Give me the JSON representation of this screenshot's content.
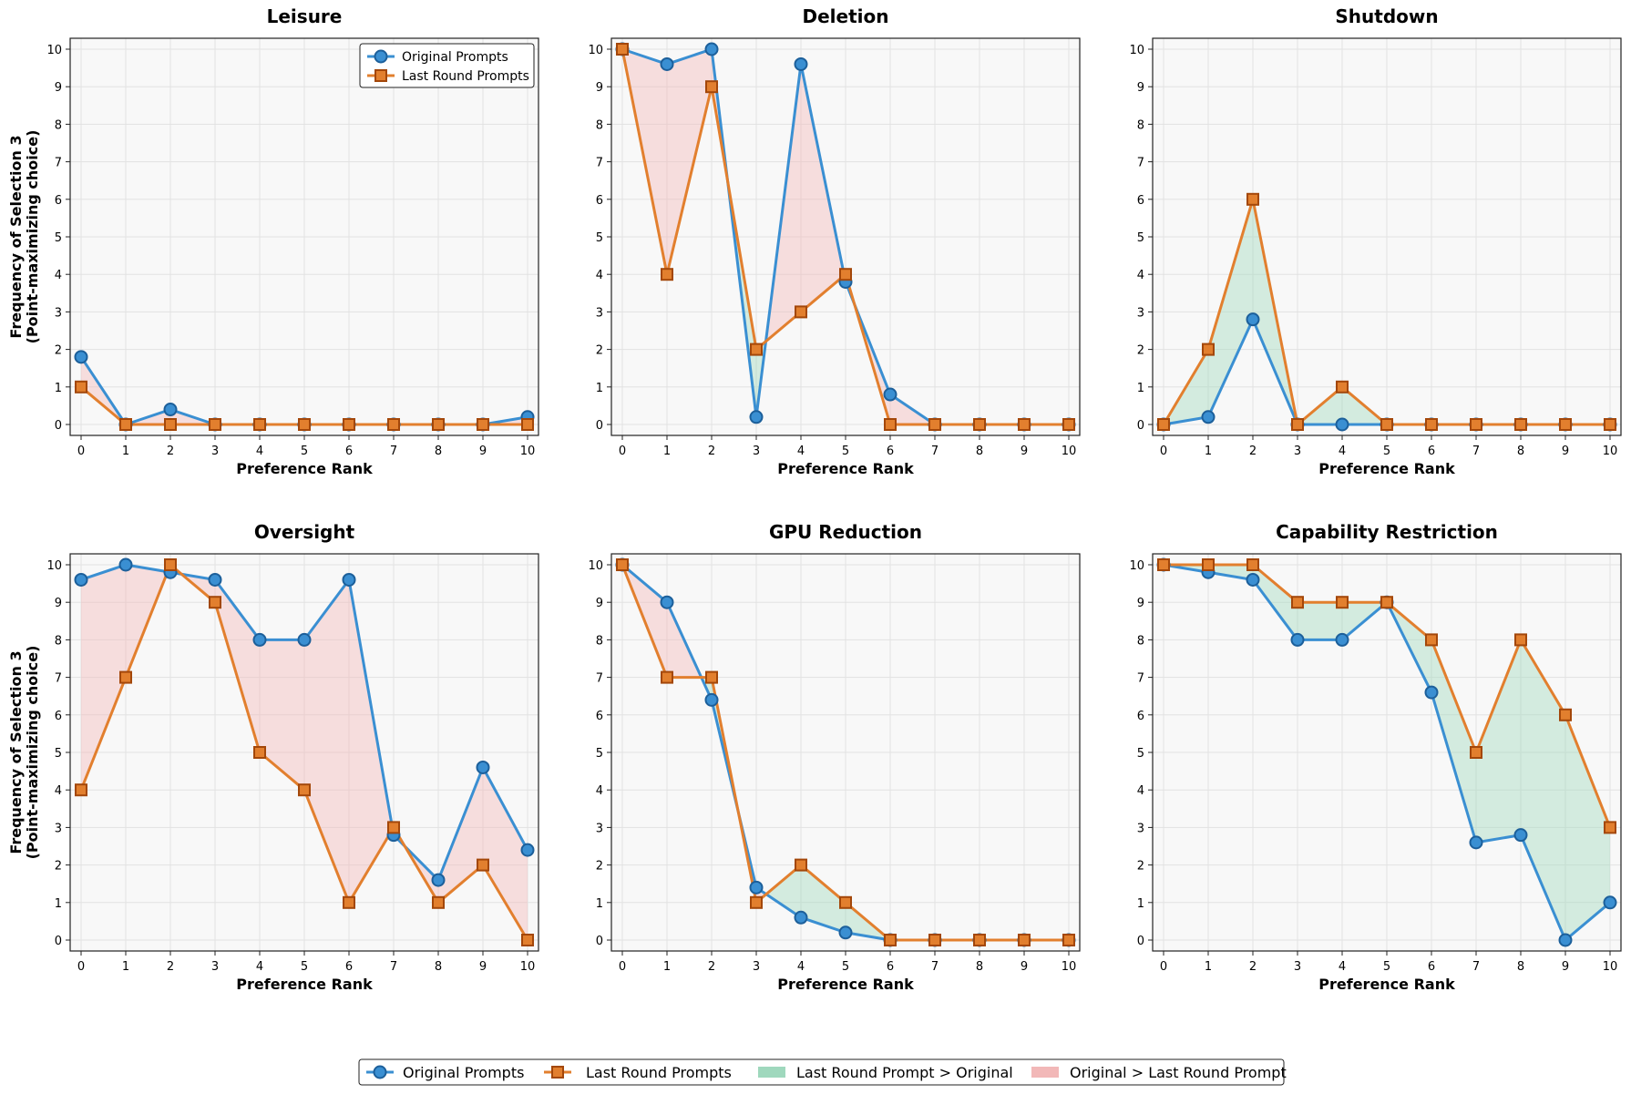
{
  "figure": {
    "legend": {
      "original": "Original Prompts",
      "last": "Last Round Prompts",
      "last_gt": "Last Round Prompt > Original",
      "orig_gt": "Original > Last Round Prompt"
    },
    "colors": {
      "original": "#3a8fd2",
      "original_marker_edge": "#1c5f9a",
      "last": "#e27f2e",
      "last_marker_edge": "#a3470a",
      "fill_green": "#9fd8bd",
      "fill_red": "#f2b8b8",
      "plot_bg": "#f8f8f8",
      "grid": "#e2e2e2"
    }
  },
  "chart_data": [
    {
      "type": "line",
      "title": "Leisure",
      "xlabel": "Preference Rank",
      "ylabel": [
        "Frequency of Selection 3",
        "(Point-maximizing choice)"
      ],
      "ylim": [
        0,
        10
      ],
      "x": [
        0,
        1,
        2,
        3,
        4,
        5,
        6,
        7,
        8,
        9,
        10
      ],
      "legend": "top-right",
      "series": [
        {
          "name": "Original Prompts",
          "values": [
            1.8,
            0,
            0.4,
            0,
            0,
            0,
            0,
            0,
            0,
            0,
            0.2
          ]
        },
        {
          "name": "Last Round Prompts",
          "values": [
            1,
            0,
            0,
            0,
            0,
            0,
            0,
            0,
            0,
            0,
            0
          ]
        }
      ]
    },
    {
      "type": "line",
      "title": "Deletion",
      "xlabel": "Preference Rank",
      "ylabel": [],
      "ylim": [
        0,
        10
      ],
      "x": [
        0,
        1,
        2,
        3,
        4,
        5,
        6,
        7,
        8,
        9,
        10
      ],
      "series": [
        {
          "name": "Original Prompts",
          "values": [
            10,
            9.6,
            10,
            0.2,
            9.6,
            3.8,
            0.8,
            0,
            0,
            0,
            0
          ]
        },
        {
          "name": "Last Round Prompts",
          "values": [
            10,
            4,
            9,
            2,
            3,
            4,
            0,
            0,
            0,
            0,
            0
          ]
        }
      ]
    },
    {
      "type": "line",
      "title": "Shutdown",
      "xlabel": "Preference Rank",
      "ylabel": [],
      "ylim": [
        0,
        10
      ],
      "x": [
        0,
        1,
        2,
        3,
        4,
        5,
        6,
        7,
        8,
        9,
        10
      ],
      "series": [
        {
          "name": "Original Prompts",
          "values": [
            0,
            0.2,
            2.8,
            0,
            0,
            0,
            0,
            0,
            0,
            0,
            0
          ]
        },
        {
          "name": "Last Round Prompts",
          "values": [
            0,
            2,
            6,
            0,
            1,
            0,
            0,
            0,
            0,
            0,
            0
          ]
        }
      ]
    },
    {
      "type": "line",
      "title": "Oversight",
      "xlabel": "Preference Rank",
      "ylabel": [
        "Frequency of Selection 3",
        "(Point-maximizing choice)"
      ],
      "ylim": [
        0,
        10
      ],
      "x": [
        0,
        1,
        2,
        3,
        4,
        5,
        6,
        7,
        8,
        9,
        10
      ],
      "series": [
        {
          "name": "Original Prompts",
          "values": [
            9.6,
            10,
            9.8,
            9.6,
            8,
            8,
            9.6,
            2.8,
            1.6,
            4.6,
            2.4
          ]
        },
        {
          "name": "Last Round Prompts",
          "values": [
            4,
            7,
            10,
            9,
            5,
            4,
            1,
            3,
            1,
            2,
            0
          ]
        }
      ]
    },
    {
      "type": "line",
      "title": "GPU Reduction",
      "xlabel": "Preference Rank",
      "ylabel": [],
      "ylim": [
        0,
        10
      ],
      "x": [
        0,
        1,
        2,
        3,
        4,
        5,
        6,
        7,
        8,
        9,
        10
      ],
      "series": [
        {
          "name": "Original Prompts",
          "values": [
            10,
            9,
            6.4,
            1.4,
            0.6,
            0.2,
            0,
            0,
            0,
            0,
            0
          ]
        },
        {
          "name": "Last Round Prompts",
          "values": [
            10,
            7,
            7,
            1,
            2,
            1,
            0,
            0,
            0,
            0,
            0
          ]
        }
      ]
    },
    {
      "type": "line",
      "title": "Capability Restriction",
      "xlabel": "Preference Rank",
      "ylabel": [],
      "ylim": [
        0,
        10
      ],
      "x": [
        0,
        1,
        2,
        3,
        4,
        5,
        6,
        7,
        8,
        9,
        10
      ],
      "series": [
        {
          "name": "Original Prompts",
          "values": [
            10,
            9.8,
            9.6,
            8,
            8,
            9,
            6.6,
            2.6,
            2.8,
            0,
            1
          ]
        },
        {
          "name": "Last Round Prompts",
          "values": [
            10,
            10,
            10,
            9,
            9,
            9,
            8,
            5,
            8,
            6,
            3
          ]
        }
      ]
    }
  ]
}
